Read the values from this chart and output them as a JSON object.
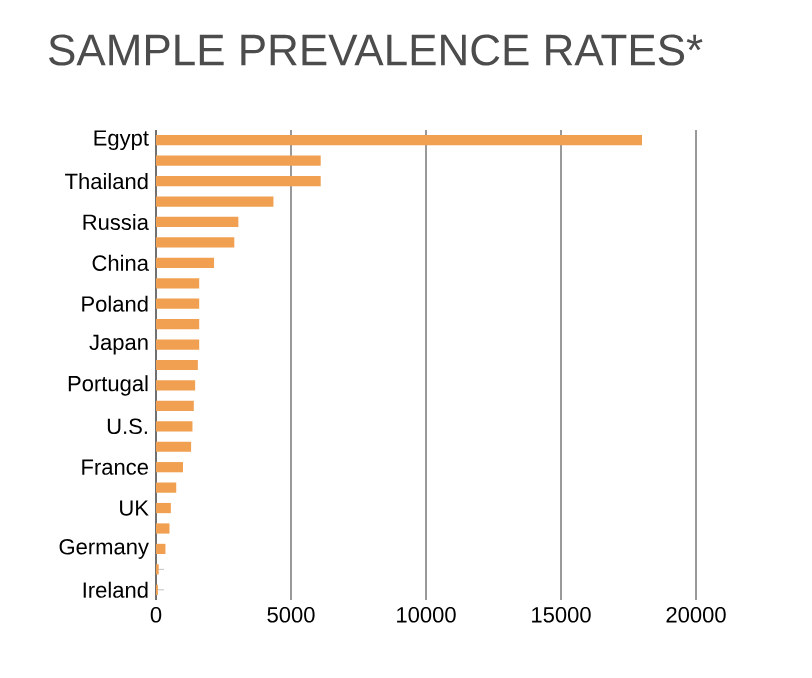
{
  "chart_data": {
    "type": "bar",
    "orientation": "horizontal",
    "title": "SAMPLE PREVALENCE RATES*",
    "categories": [
      "Egypt",
      null,
      "Thailand",
      null,
      "Russia",
      null,
      "China",
      null,
      "Poland",
      null,
      "Japan",
      null,
      "Portugal",
      null,
      "U.S.",
      null,
      "France",
      null,
      "UK",
      null,
      "Germany",
      null,
      "Ireland"
    ],
    "values": [
      18000,
      6100,
      6100,
      4350,
      3050,
      2900,
      2150,
      1600,
      1600,
      1600,
      1600,
      1550,
      1450,
      1400,
      1350,
      1300,
      1000,
      750,
      550,
      500,
      350,
      100,
      70
    ],
    "color": "#f0a050",
    "xlim": [
      0,
      20000
    ],
    "xticks": [
      0,
      5000,
      10000,
      15000,
      20000
    ],
    "grid": "x"
  }
}
